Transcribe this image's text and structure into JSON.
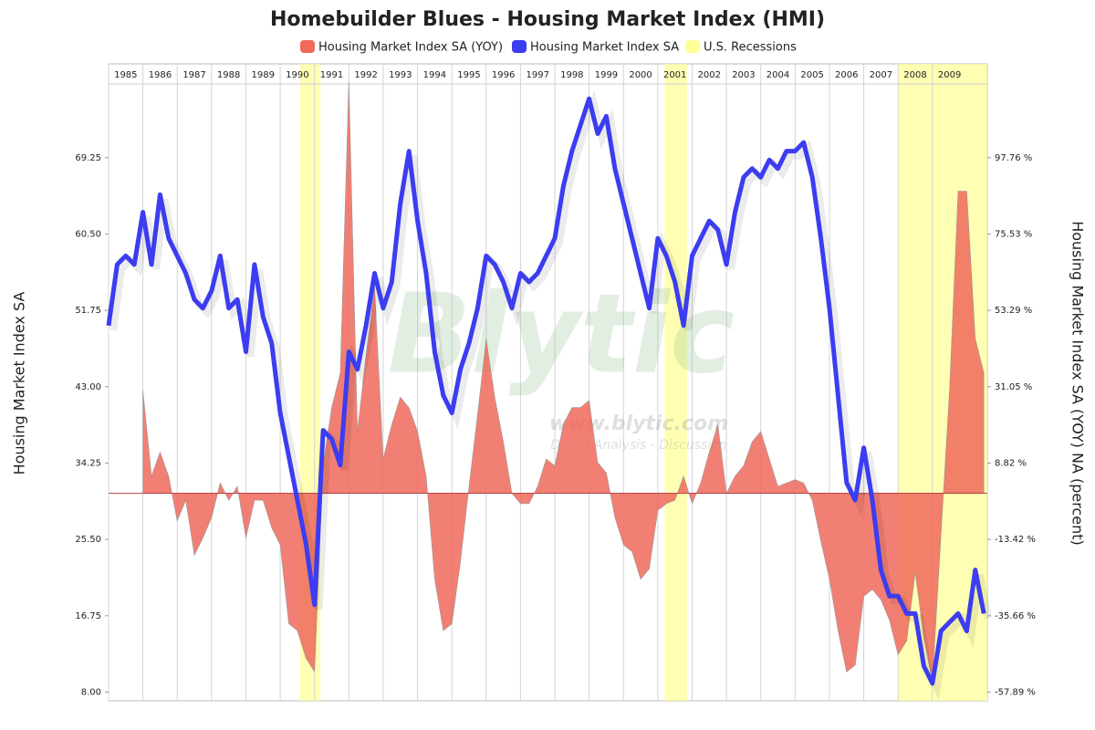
{
  "chart_data": {
    "type": "line",
    "title": "Homebuilder Blues - Housing Market Index (HMI)",
    "ylabel": "Housing Market Index SA",
    "y2label": "Housing Market Index SA (YOY) NA (percent)",
    "watermark": "Blytic",
    "watermark_url": "www.blytic.com",
    "watermark_tagline": "Data - Analysis - Discussion",
    "x": [
      1985,
      1985.25,
      1985.5,
      1985.75,
      1986,
      1986.25,
      1986.5,
      1986.75,
      1987,
      1987.25,
      1987.5,
      1987.75,
      1988,
      1988.25,
      1988.5,
      1988.75,
      1989,
      1989.25,
      1989.5,
      1989.75,
      1990,
      1990.25,
      1990.5,
      1990.75,
      1991,
      1991.25,
      1991.5,
      1991.75,
      1992,
      1992.25,
      1992.5,
      1992.75,
      1993,
      1993.25,
      1993.5,
      1993.75,
      1994,
      1994.25,
      1994.5,
      1994.75,
      1995,
      1995.25,
      1995.5,
      1995.75,
      1996,
      1996.25,
      1996.5,
      1996.75,
      1997,
      1997.25,
      1997.5,
      1997.75,
      1998,
      1998.25,
      1998.5,
      1998.75,
      1999,
      1999.25,
      1999.5,
      1999.75,
      2000,
      2000.25,
      2000.5,
      2000.75,
      2001,
      2001.25,
      2001.5,
      2001.75,
      2002,
      2002.25,
      2002.5,
      2002.75,
      2003,
      2003.25,
      2003.5,
      2003.75,
      2004,
      2004.25,
      2004.5,
      2004.75,
      2005,
      2005.25,
      2005.5,
      2005.75,
      2006,
      2006.25,
      2006.5,
      2006.75,
      2007,
      2007.25,
      2007.5,
      2007.75,
      2008,
      2008.25,
      2008.5,
      2008.75,
      2009,
      2009.25,
      2009.5,
      2009.75,
      2010,
      2010.25,
      2010.5
    ],
    "series": [
      {
        "name": "Housing Market Index SA (YOY)",
        "color": "#f0695a",
        "axis": "y2",
        "area": true,
        "values": [
          null,
          null,
          null,
          null,
          30,
          5,
          12,
          5,
          -8,
          -2,
          -18,
          -13,
          -7,
          3,
          -2,
          2,
          -13,
          -2,
          -2,
          -10,
          -15,
          -38,
          -40,
          -48,
          -52,
          8,
          25,
          35,
          120,
          18,
          40,
          60,
          10,
          20,
          28,
          25,
          18,
          5,
          -25,
          -40,
          -38,
          -20,
          2,
          23,
          45,
          28,
          15,
          0,
          -3,
          -3,
          2,
          10,
          8,
          20,
          25,
          25,
          27,
          9,
          6,
          -7,
          -15,
          -17,
          -25,
          -22,
          -5,
          -3,
          -2,
          5,
          -3,
          3,
          12,
          20,
          0,
          5,
          8,
          15,
          18,
          10,
          2,
          3,
          4,
          3,
          -2,
          -14,
          -25,
          -40,
          -52,
          -50,
          -30,
          -28,
          -31,
          -37,
          -47,
          -43,
          -23,
          -42,
          -55,
          -12,
          30,
          88,
          88,
          45,
          35
        ]
      },
      {
        "name": "Housing Market Index SA",
        "color": "#3c3cf0",
        "axis": "y",
        "values": [
          50,
          57,
          58,
          57,
          63,
          57,
          65,
          60,
          58,
          56,
          53,
          52,
          54,
          58,
          52,
          53,
          47,
          57,
          51,
          48,
          40,
          35,
          30,
          25,
          18,
          38,
          37,
          34,
          47,
          45,
          50,
          56,
          52,
          55,
          64,
          70,
          62,
          56,
          47,
          42,
          40,
          45,
          48,
          52,
          58,
          57,
          55,
          52,
          56,
          55,
          56,
          58,
          60,
          66,
          70,
          73,
          76,
          72,
          74,
          68,
          64,
          60,
          56,
          52,
          60,
          58,
          55,
          50,
          58,
          60,
          62,
          61,
          57,
          63,
          67,
          68,
          67,
          69,
          68,
          70,
          70,
          71,
          67,
          60,
          52,
          42,
          32,
          30,
          36,
          30,
          22,
          19,
          19,
          17,
          17,
          11,
          9,
          15,
          16,
          17,
          15,
          22,
          17
        ]
      }
    ],
    "recessions": {
      "name": "U.S. Recessions",
      "color": "#ffff99",
      "spans": [
        [
          1990.58,
          1991.17
        ],
        [
          2001.2,
          2001.85
        ],
        [
          2008.0,
          2010.6
        ]
      ]
    },
    "xlim": [
      1985,
      2010.6
    ],
    "xticks": [
      1985,
      1986,
      1987,
      1988,
      1989,
      1990,
      1991,
      1992,
      1993,
      1994,
      1995,
      1996,
      1997,
      1998,
      1999,
      2000,
      2001,
      2002,
      2003,
      2004,
      2005,
      2006,
      2007,
      2008,
      2009
    ],
    "ylim": [
      7,
      80
    ],
    "yticks": [
      {
        "value": 8,
        "label": "8.00"
      },
      16.75,
      {
        "value": 25.5,
        "label": "25.50"
      },
      34.25,
      {
        "value": 43,
        "label": "43.00"
      },
      {
        "value": 51.75,
        "label": "51.75"
      },
      {
        "value": 60.5,
        "label": "60.50"
      },
      69.25
    ],
    "y2lim": [
      -60.43,
      125.08
    ],
    "y2ticks": [
      {
        "value": -57.89,
        "label": "-57.89 %"
      },
      {
        "value": -35.66,
        "label": "-35.66 %"
      },
      {
        "value": -13.42,
        "label": "-13.42 %"
      },
      {
        "value": 8.82,
        "label": "8.82 %"
      },
      {
        "value": 31.05,
        "label": "31.05 %"
      },
      {
        "value": 53.29,
        "label": "53.29 %"
      },
      {
        "value": 75.53,
        "label": "75.53 %"
      },
      {
        "value": 97.76,
        "label": "97.76 %"
      }
    ],
    "grid": true,
    "legend": "top"
  }
}
